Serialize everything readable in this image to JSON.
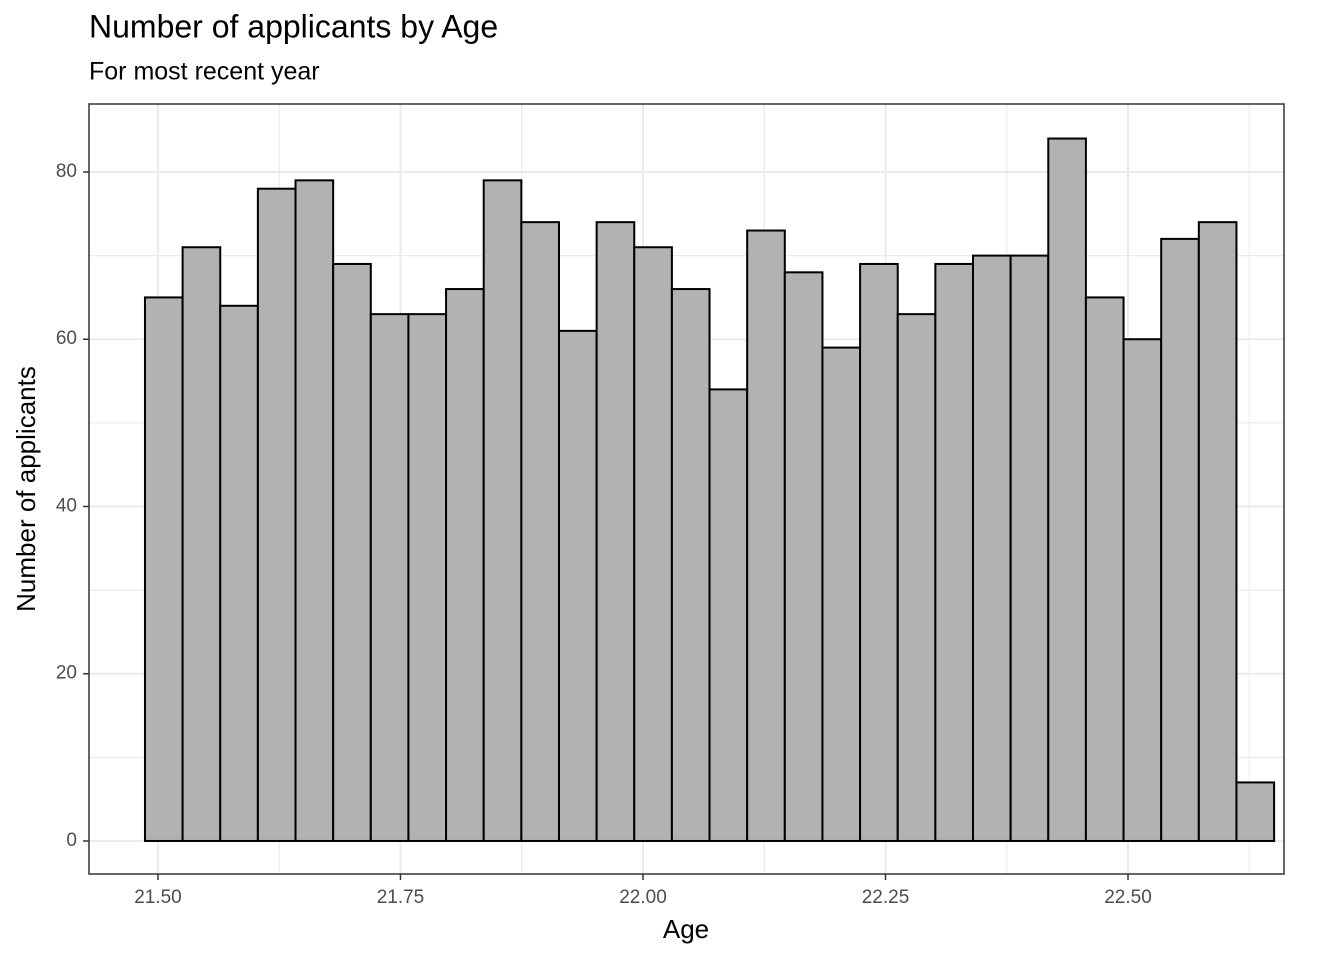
{
  "chart_data": {
    "type": "histogram",
    "title": "Number of applicants by Age",
    "subtitle": "For most recent year",
    "xlabel": "Age",
    "ylabel": "Number of applicants",
    "bins": [
      21.4866,
      21.5254,
      21.5642,
      21.603,
      21.6418,
      21.6806,
      21.7194,
      21.7582,
      21.797,
      21.8358,
      21.8746,
      21.9134,
      21.9522,
      21.991,
      22.0298,
      22.0686,
      22.1074,
      22.1462,
      22.185,
      22.2238,
      22.2626,
      22.3014,
      22.3402,
      22.379,
      22.4178,
      22.4566,
      22.4954,
      22.5342,
      22.573,
      22.6118,
      22.6506
    ],
    "values": [
      65,
      71,
      64,
      78,
      79,
      69,
      63,
      63,
      66,
      79,
      74,
      61,
      74,
      71,
      66,
      54,
      73,
      68,
      59,
      69,
      63,
      69,
      70,
      70,
      84,
      65,
      60,
      72,
      74,
      7
    ],
    "color": "#b2b2b2",
    "edgecolor": "#000000",
    "xlim": [
      21.4289,
      22.6608
    ],
    "ylim": [
      -3.95,
      88.13
    ],
    "xticks": [
      {
        "value": 21.5,
        "label": "21.50"
      },
      {
        "value": 21.75,
        "label": "21.75"
      },
      {
        "value": 22.0,
        "label": "22.00"
      },
      {
        "value": 22.25,
        "label": "22.25"
      },
      {
        "value": 22.5,
        "label": "22.50"
      }
    ],
    "yticks": [
      0,
      20,
      40,
      60,
      80
    ],
    "grid": true
  }
}
